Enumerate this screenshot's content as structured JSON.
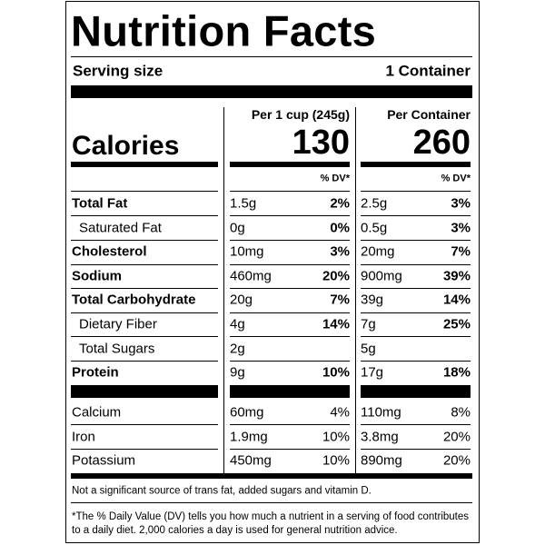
{
  "title": "Nutrition Facts",
  "serving": {
    "label": "Serving size",
    "value": "1 Container"
  },
  "calories_label": "Calories",
  "columns": [
    {
      "header": "Per 1 cup (245g)",
      "calories": 130,
      "dv_header": "% DV*"
    },
    {
      "header": "Per Container",
      "calories": 260,
      "dv_header": "% DV*"
    }
  ],
  "nutrients": [
    {
      "name": "Total Fat",
      "bold": true,
      "indent": false,
      "values": [
        {
          "amount": "1.5g",
          "dv": "2%"
        },
        {
          "amount": "2.5g",
          "dv": "3%"
        }
      ]
    },
    {
      "name": "Saturated Fat",
      "bold": false,
      "indent": true,
      "values": [
        {
          "amount": "0g",
          "dv": "0%"
        },
        {
          "amount": "0.5g",
          "dv": "3%"
        }
      ]
    },
    {
      "name": "Cholesterol",
      "bold": true,
      "indent": false,
      "values": [
        {
          "amount": "10mg",
          "dv": "3%"
        },
        {
          "amount": "20mg",
          "dv": "7%"
        }
      ]
    },
    {
      "name": "Sodium",
      "bold": true,
      "indent": false,
      "values": [
        {
          "amount": "460mg",
          "dv": "20%"
        },
        {
          "amount": "900mg",
          "dv": "39%"
        }
      ]
    },
    {
      "name": "Total Carbohydrate",
      "bold": true,
      "indent": false,
      "values": [
        {
          "amount": "20g",
          "dv": "7%"
        },
        {
          "amount": "39g",
          "dv": "14%"
        }
      ]
    },
    {
      "name": "Dietary Fiber",
      "bold": false,
      "indent": true,
      "values": [
        {
          "amount": "4g",
          "dv": "14%"
        },
        {
          "amount": "7g",
          "dv": "25%"
        }
      ]
    },
    {
      "name": "Total Sugars",
      "bold": false,
      "indent": true,
      "values": [
        {
          "amount": "2g"
        },
        {
          "amount": "5g"
        }
      ]
    },
    {
      "name": "Protein",
      "bold": true,
      "indent": false,
      "values": [
        {
          "amount": "9g",
          "dv": "10%"
        },
        {
          "amount": "17g",
          "dv": "18%"
        }
      ]
    }
  ],
  "minerals": [
    {
      "name": "Calcium",
      "values": [
        {
          "amount": "60mg",
          "dv": "4%"
        },
        {
          "amount": "110mg",
          "dv": "8%"
        }
      ]
    },
    {
      "name": "Iron",
      "values": [
        {
          "amount": "1.9mg",
          "dv": "10%"
        },
        {
          "amount": "3.8mg",
          "dv": "20%"
        }
      ]
    },
    {
      "name": "Potassium",
      "values": [
        {
          "amount": "450mg",
          "dv": "10%"
        },
        {
          "amount": "890mg",
          "dv": "20%"
        }
      ]
    }
  ],
  "footnotes": [
    "Not a significant source of trans fat, added sugars and vitamin D.",
    "*The % Daily Value (DV) tells you how much a nutrient in a serving of food contributes to a daily diet. 2,000 calories a day is used for general nutrition advice."
  ]
}
